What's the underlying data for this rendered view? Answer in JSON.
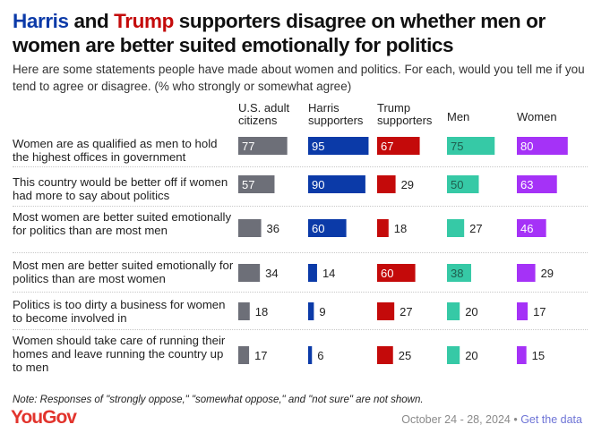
{
  "title": {
    "part1": "Harris",
    "part2": " and ",
    "part3": "Trump",
    "part4": " supporters disagree on whether men or women are better suited emotionally for politics"
  },
  "subtitle": "Here are some statements people have made about women and politics. For each, would you tell me if you tend to agree or disagree. (% who strongly or somewhat agree)",
  "colors": {
    "us": "#6d6f78",
    "harris": "#0b3aa8",
    "trump": "#c40a0a",
    "men": "#36c9a6",
    "women": "#a532f7"
  },
  "chart_data": {
    "type": "bar",
    "title": "Harris and Trump supporters disagree on whether men or women are better suited emotionally for politics",
    "unit": "% who strongly or somewhat agree",
    "xlim": [
      0,
      100
    ],
    "series": [
      {
        "key": "us",
        "name": "U.S. adult citizens",
        "values": [
          77,
          57,
          36,
          34,
          18,
          17
        ]
      },
      {
        "key": "harris",
        "name": "Harris supporters",
        "values": [
          95,
          90,
          60,
          14,
          9,
          6
        ]
      },
      {
        "key": "trump",
        "name": "Trump supporters",
        "values": [
          67,
          29,
          18,
          60,
          27,
          25
        ]
      },
      {
        "key": "men",
        "name": "Men",
        "values": [
          75,
          50,
          27,
          38,
          20,
          20
        ]
      },
      {
        "key": "women",
        "name": "Women",
        "values": [
          80,
          63,
          46,
          29,
          17,
          15
        ]
      }
    ],
    "categories": [
      "Women are as qualified as men to hold the highest offices in government",
      "This country would be better off if women had more to say about politics",
      "Most women are better suited emotionally for politics than are most men",
      "Most men are better suited emotionally for politics than are most women",
      "Politics is too dirty a business for women to become involved in",
      "Women should take care of running their homes and leave running the country up to men"
    ]
  },
  "note": "Note: Responses of \"strongly oppose,\" \"somewhat oppose,\" and \"not sure\" are not shown.",
  "footer": {
    "logo": "YouGov",
    "date": "October 24 - 28, 2024",
    "separator": " • ",
    "link": "Get the data"
  }
}
